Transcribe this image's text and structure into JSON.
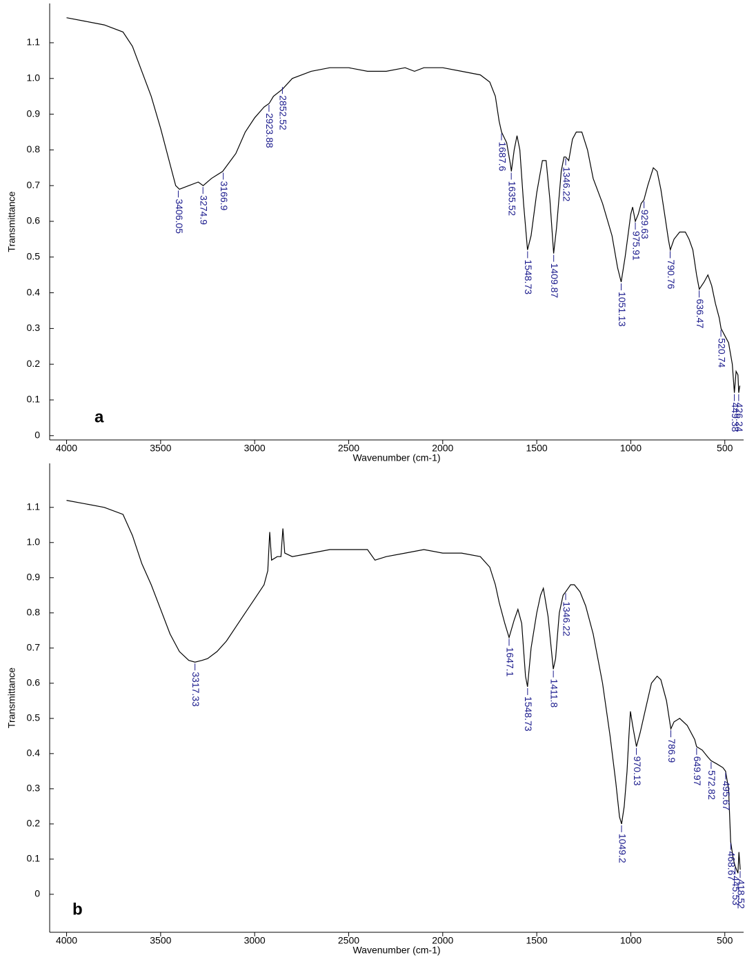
{
  "chart_data": [
    {
      "type": "line",
      "panel_label": "a",
      "xlabel": "Wavenumber (cm-1)",
      "ylabel": "Transmittance",
      "xlim": [
        4090,
        400
      ],
      "ylim": [
        -0.012,
        1.21
      ],
      "xticks": [
        4000,
        3500,
        3000,
        2500,
        2000,
        1500,
        1000,
        500
      ],
      "yticks": [
        0,
        0.1,
        0.2,
        0.3,
        0.4,
        0.5,
        0.6,
        0.7,
        0.8,
        0.9,
        {
          "value": 1,
          "label": "1.0"
        },
        1.1
      ],
      "color": "#000000",
      "annotation_color": "#1a1a8c",
      "x": [
        4000,
        3900,
        3800,
        3700,
        3650,
        3600,
        3550,
        3500,
        3450,
        3420,
        3400,
        3350,
        3300,
        3274,
        3230,
        3170,
        3100,
        3050,
        3000,
        2950,
        2923,
        2900,
        2852,
        2800,
        2700,
        2600,
        2500,
        2400,
        2300,
        2200,
        2150,
        2100,
        2000,
        1900,
        1800,
        1750,
        1720,
        1700,
        1687,
        1660,
        1640,
        1635,
        1620,
        1605,
        1590,
        1570,
        1549,
        1530,
        1500,
        1470,
        1450,
        1430,
        1410,
        1395,
        1370,
        1355,
        1346,
        1330,
        1310,
        1290,
        1260,
        1230,
        1200,
        1150,
        1100,
        1070,
        1051,
        1030,
        1010,
        1000,
        990,
        976,
        960,
        945,
        930,
        910,
        880,
        860,
        840,
        820,
        800,
        790,
        770,
        740,
        710,
        690,
        670,
        650,
        636,
        610,
        590,
        570,
        550,
        530,
        520,
        500,
        480,
        460,
        449,
        440,
        430,
        426,
        420
      ],
      "values": [
        1.17,
        1.16,
        1.15,
        1.13,
        1.09,
        1.02,
        0.95,
        0.86,
        0.76,
        0.7,
        0.69,
        0.7,
        0.71,
        0.7,
        0.72,
        0.74,
        0.79,
        0.85,
        0.89,
        0.92,
        0.93,
        0.95,
        0.97,
        1.0,
        1.02,
        1.03,
        1.03,
        1.02,
        1.02,
        1.03,
        1.02,
        1.03,
        1.03,
        1.02,
        1.01,
        0.99,
        0.95,
        0.88,
        0.85,
        0.82,
        0.76,
        0.74,
        0.8,
        0.84,
        0.8,
        0.65,
        0.52,
        0.56,
        0.68,
        0.77,
        0.77,
        0.66,
        0.51,
        0.58,
        0.74,
        0.78,
        0.78,
        0.77,
        0.83,
        0.85,
        0.85,
        0.8,
        0.72,
        0.65,
        0.56,
        0.47,
        0.43,
        0.5,
        0.58,
        0.62,
        0.64,
        0.6,
        0.62,
        0.65,
        0.66,
        0.7,
        0.75,
        0.74,
        0.69,
        0.62,
        0.55,
        0.52,
        0.55,
        0.57,
        0.57,
        0.55,
        0.52,
        0.45,
        0.41,
        0.43,
        0.45,
        0.42,
        0.37,
        0.33,
        0.3,
        0.28,
        0.26,
        0.2,
        0.12,
        0.18,
        0.17,
        0.12,
        0.14
      ],
      "annotations": [
        {
          "x": 3406.05,
          "y": 0.69
        },
        {
          "x": 3274.9,
          "y": 0.7
        },
        {
          "x": 3166.9,
          "y": 0.74
        },
        {
          "x": 2923.88,
          "y": 0.93
        },
        {
          "x": 2852.52,
          "y": 0.98
        },
        {
          "x": 1687.6,
          "y": 0.85
        },
        {
          "x": 1635.52,
          "y": 0.74
        },
        {
          "x": 1548.73,
          "y": 0.52
        },
        {
          "x": 1409.87,
          "y": 0.51
        },
        {
          "x": 1346.22,
          "y": 0.78
        },
        {
          "x": 1051.13,
          "y": 0.43
        },
        {
          "x": 975.91,
          "y": 0.6
        },
        {
          "x": 929.63,
          "y": 0.66
        },
        {
          "x": 790.76,
          "y": 0.52
        },
        {
          "x": 636.47,
          "y": 0.41
        },
        {
          "x": 520.74,
          "y": 0.3
        },
        {
          "x": 449.38,
          "y": 0.12
        },
        {
          "x": 426.24,
          "y": 0.12
        }
      ]
    },
    {
      "type": "line",
      "panel_label": "b",
      "xlabel": "Wavenumber (cm-1)",
      "ylabel": "Transmittance",
      "xlim": [
        4090,
        400
      ],
      "ylim": [
        -0.108,
        1.225
      ],
      "xticks": [
        4000,
        3500,
        3000,
        2500,
        2000,
        1500,
        1000,
        500
      ],
      "yticks": [
        0,
        0.1,
        0.2,
        0.3,
        0.4,
        0.5,
        0.6,
        0.7,
        0.8,
        0.9,
        {
          "value": 1,
          "label": "1.0"
        },
        1.1
      ],
      "color": "#000000",
      "annotation_color": "#1a1a8c",
      "x": [
        4000,
        3900,
        3800,
        3700,
        3650,
        3600,
        3550,
        3500,
        3450,
        3400,
        3350,
        3317,
        3280,
        3250,
        3200,
        3150,
        3100,
        3050,
        3000,
        2950,
        2930,
        2920,
        2910,
        2880,
        2860,
        2850,
        2840,
        2800,
        2700,
        2600,
        2500,
        2400,
        2360,
        2300,
        2200,
        2100,
        2000,
        1900,
        1800,
        1750,
        1720,
        1700,
        1670,
        1647,
        1620,
        1600,
        1580,
        1560,
        1549,
        1530,
        1500,
        1480,
        1465,
        1440,
        1412,
        1400,
        1380,
        1360,
        1346,
        1320,
        1300,
        1270,
        1240,
        1200,
        1150,
        1110,
        1080,
        1060,
        1049,
        1035,
        1020,
        1010,
        1002,
        990,
        970,
        950,
        920,
        890,
        860,
        840,
        810,
        790,
        787,
        770,
        740,
        700,
        660,
        650,
        620,
        590,
        573,
        540,
        510,
        496,
        480,
        469,
        455,
        445,
        430,
        425,
        418
      ],
      "values": [
        1.12,
        1.11,
        1.1,
        1.08,
        1.02,
        0.94,
        0.88,
        0.81,
        0.74,
        0.69,
        0.665,
        0.66,
        0.665,
        0.67,
        0.69,
        0.72,
        0.76,
        0.8,
        0.84,
        0.88,
        0.92,
        1.03,
        0.95,
        0.96,
        0.96,
        1.04,
        0.97,
        0.96,
        0.97,
        0.98,
        0.98,
        0.98,
        0.95,
        0.96,
        0.97,
        0.98,
        0.97,
        0.97,
        0.96,
        0.93,
        0.88,
        0.83,
        0.77,
        0.73,
        0.78,
        0.81,
        0.77,
        0.62,
        0.59,
        0.7,
        0.8,
        0.85,
        0.87,
        0.79,
        0.64,
        0.67,
        0.8,
        0.85,
        0.86,
        0.88,
        0.88,
        0.86,
        0.82,
        0.74,
        0.6,
        0.45,
        0.32,
        0.22,
        0.2,
        0.25,
        0.35,
        0.45,
        0.52,
        0.48,
        0.42,
        0.46,
        0.53,
        0.6,
        0.62,
        0.61,
        0.55,
        0.48,
        0.47,
        0.49,
        0.5,
        0.48,
        0.44,
        0.42,
        0.41,
        0.39,
        0.38,
        0.37,
        0.36,
        0.35,
        0.3,
        0.15,
        0.1,
        0.08,
        0.06,
        0.12,
        0.07
      ],
      "annotations": [
        {
          "x": 3317.33,
          "y": 0.66
        },
        {
          "x": 1647.1,
          "y": 0.73
        },
        {
          "x": 1548.73,
          "y": 0.59
        },
        {
          "x": 1411.8,
          "y": 0.64
        },
        {
          "x": 1346.22,
          "y": 0.86
        },
        {
          "x": 1049.2,
          "y": 0.2
        },
        {
          "x": 970.13,
          "y": 0.42
        },
        {
          "x": 786.9,
          "y": 0.47
        },
        {
          "x": 649.97,
          "y": 0.42
        },
        {
          "x": 572.82,
          "y": 0.38
        },
        {
          "x": 495.67,
          "y": 0.35
        },
        {
          "x": 468.67,
          "y": 0.15
        },
        {
          "x": 445.53,
          "y": 0.08
        },
        {
          "x": 418.52,
          "y": 0.07
        }
      ]
    }
  ]
}
